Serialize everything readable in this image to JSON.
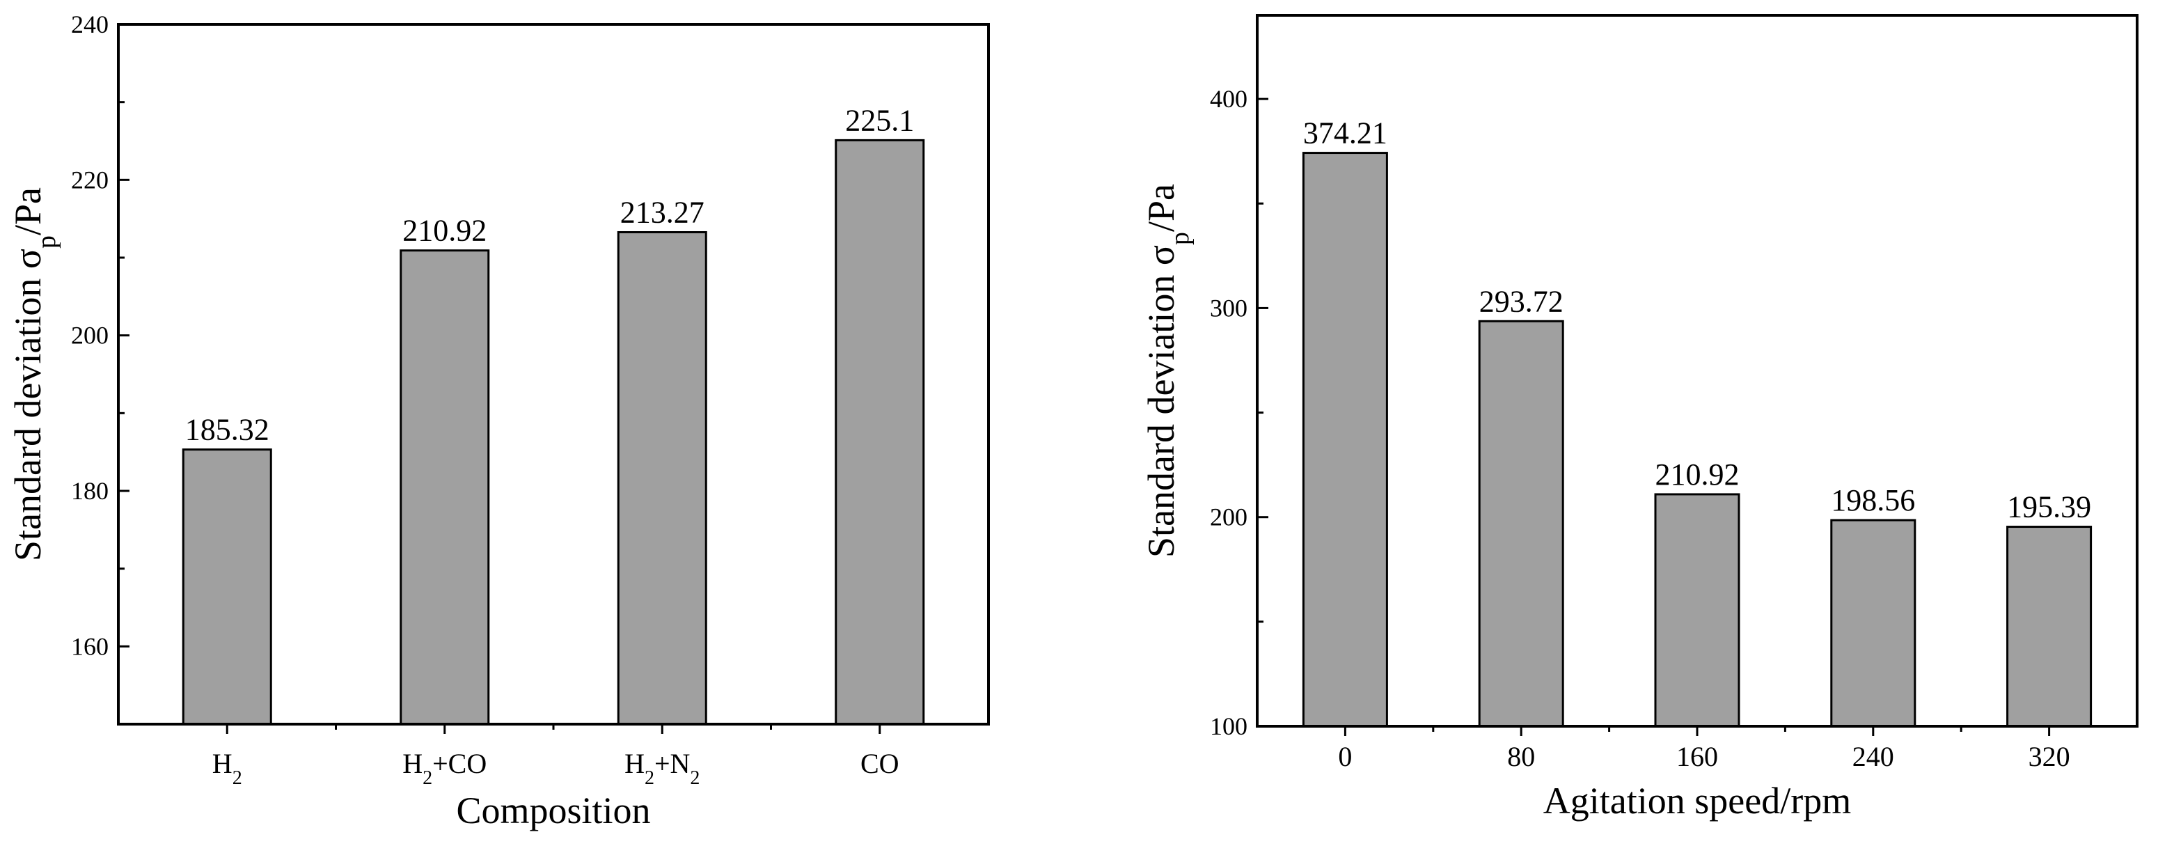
{
  "chart_data": [
    {
      "type": "bar",
      "xlabel": "Composition",
      "ylabel": "Standard deviation σ",
      "ylabel_sub": "p",
      "ylabel_suffix": "/Pa",
      "categories": [
        {
          "base": "H",
          "sub": "2",
          "mid": "",
          "sub2": ""
        },
        {
          "base": "H",
          "sub": "2",
          "mid": "+CO",
          "sub2": ""
        },
        {
          "base": "H",
          "sub": "2",
          "mid": "+N",
          "sub2": "2"
        },
        {
          "base": "CO",
          "sub": "",
          "mid": "",
          "sub2": ""
        }
      ],
      "values": [
        185.32,
        210.92,
        213.27,
        225.1
      ],
      "value_labels": [
        "185.32",
        "210.92",
        "213.27",
        "225.1"
      ],
      "ylim": [
        150,
        240
      ],
      "yticks": [
        160,
        180,
        200,
        220,
        240
      ],
      "bar_color": "#a0a0a0",
      "grid": false
    },
    {
      "type": "bar",
      "xlabel": "Agitation speed/rpm",
      "ylabel": "Standard deviation σ",
      "ylabel_sub": "p",
      "ylabel_suffix": "/Pa",
      "categories": [
        {
          "base": "0",
          "sub": "",
          "mid": "",
          "sub2": ""
        },
        {
          "base": "80",
          "sub": "",
          "mid": "",
          "sub2": ""
        },
        {
          "base": "160",
          "sub": "",
          "mid": "",
          "sub2": ""
        },
        {
          "base": "240",
          "sub": "",
          "mid": "",
          "sub2": ""
        },
        {
          "base": "320",
          "sub": "",
          "mid": "",
          "sub2": ""
        }
      ],
      "values": [
        374.21,
        293.72,
        210.92,
        198.56,
        195.39
      ],
      "value_labels": [
        "374.21",
        "293.72",
        "210.92",
        "198.56",
        "195.39"
      ],
      "ylim": [
        100,
        440
      ],
      "yticks": [
        100,
        200,
        300,
        400
      ],
      "bar_color": "#a0a0a0",
      "grid": false
    }
  ]
}
